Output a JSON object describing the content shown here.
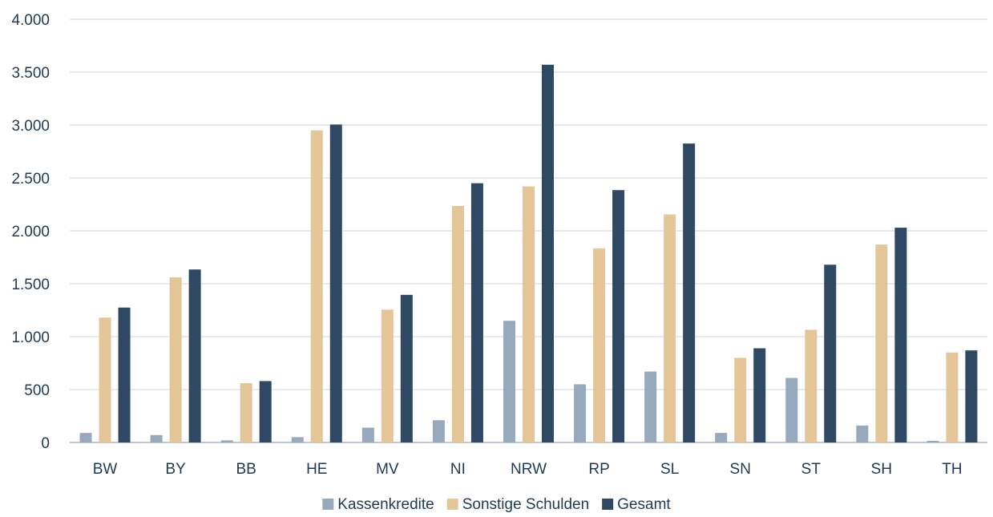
{
  "chart_data": {
    "type": "bar",
    "title": "",
    "xlabel": "",
    "ylabel": "",
    "categories": [
      "BW",
      "BY",
      "BB",
      "HE",
      "MV",
      "NI",
      "NRW",
      "RP",
      "SL",
      "SN",
      "ST",
      "SH",
      "TH"
    ],
    "ylim": [
      0,
      4000
    ],
    "yticks": [
      0,
      500,
      1000,
      1500,
      2000,
      2500,
      3000,
      3500,
      4000
    ],
    "ytick_labels": [
      "0",
      "500",
      "1.000",
      "1.500",
      "2.000",
      "2.500",
      "3.000",
      "3.500",
      "4.000"
    ],
    "grid": true,
    "legend_position": "bottom",
    "series": [
      {
        "name": "Kassenkredite",
        "color": "#97a9bc",
        "values": [
          90,
          70,
          20,
          50,
          140,
          210,
          1150,
          550,
          670,
          90,
          610,
          160,
          15
        ]
      },
      {
        "name": "Sonstige Schulden",
        "color": "#e3c598",
        "values": [
          1180,
          1560,
          560,
          2950,
          1255,
          2235,
          2420,
          1835,
          2155,
          800,
          1065,
          1870,
          850
        ]
      },
      {
        "name": "Gesamt",
        "color": "#2f4964",
        "values": [
          1275,
          1635,
          580,
          3005,
          1395,
          2450,
          3570,
          2385,
          2825,
          890,
          1680,
          2030,
          870
        ]
      }
    ]
  }
}
